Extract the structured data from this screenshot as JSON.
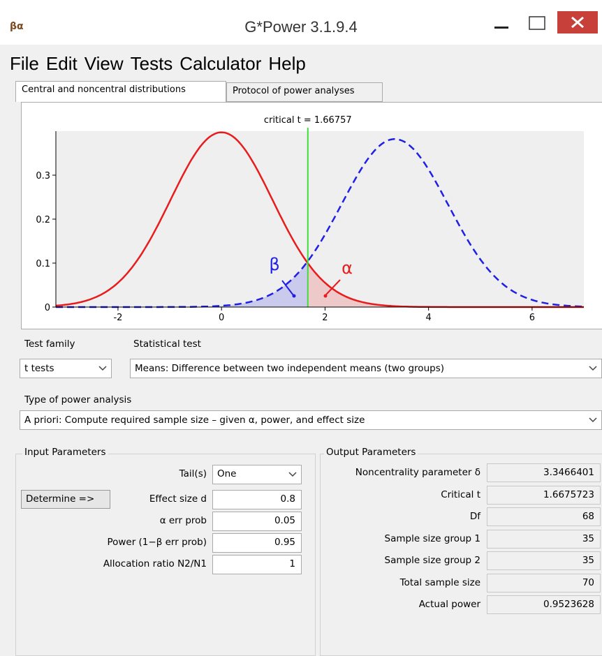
{
  "window": {
    "title": "G*Power 3.1.9.4"
  },
  "menu": [
    "File",
    "Edit",
    "View",
    "Tests",
    "Calculator",
    "Help"
  ],
  "tabs": [
    "Central and noncentral distributions",
    "Protocol of power analyses"
  ],
  "plot": {
    "type": "line",
    "critical_t": {
      "value": 1.66757,
      "label": "critical t = 1.66757"
    },
    "xlim": [
      -3.2,
      7
    ],
    "xticks": [
      -2,
      0,
      2,
      4,
      6
    ],
    "ylim": [
      0,
      0.4
    ],
    "yticks": [
      0,
      0.1,
      0.2,
      0.3
    ],
    "beta_label": "β",
    "alpha_label": "α",
    "central_color": "#e81c1c",
    "noncentral_color": "#1f1fe6",
    "critical_color": "#3ede3e"
  },
  "test_family": {
    "label": "Test family",
    "value": "t tests"
  },
  "statistical_test": {
    "label": "Statistical test",
    "value": "Means: Difference between two independent means (two groups)"
  },
  "analysis_type": {
    "label": "Type of power analysis",
    "value": "A priori: Compute required sample size – given α, power, and effect size"
  },
  "input": {
    "title": "Input Parameters",
    "button": "Determine =>",
    "rows": [
      {
        "label": "Tail(s)",
        "value": "One"
      },
      {
        "label": "Effect size d",
        "value": "0.8"
      },
      {
        "label": "α err prob",
        "value": "0.05"
      },
      {
        "label": "Power (1−β err prob)",
        "value": "0.95"
      },
      {
        "label": "Allocation ratio N2/N1",
        "value": "1"
      }
    ]
  },
  "output": {
    "title": "Output Parameters",
    "rows": [
      {
        "label": "Noncentrality parameter δ",
        "value": "3.3466401"
      },
      {
        "label": "Critical t",
        "value": "1.6675723"
      },
      {
        "label": "Df",
        "value": "68"
      },
      {
        "label": "Sample size group 1",
        "value": "35"
      },
      {
        "label": "Sample size group 2",
        "value": "35"
      },
      {
        "label": "Total sample size",
        "value": "70"
      },
      {
        "label": "Actual power",
        "value": "0.9523628"
      }
    ]
  }
}
